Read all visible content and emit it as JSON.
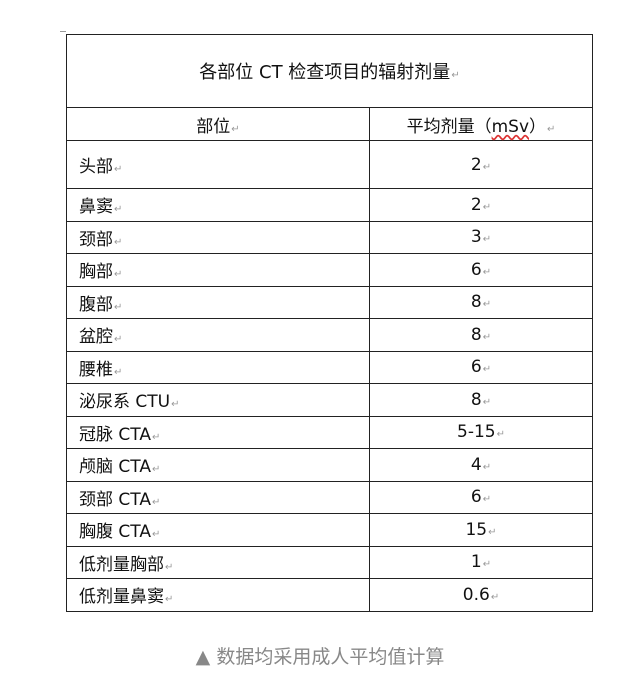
{
  "table": {
    "title": "各部位 CT 检查项目的辐射剂量",
    "headers": {
      "part": "部位",
      "dose_prefix": "平均剂量（",
      "dose_unit": "mSv",
      "dose_suffix": "）"
    },
    "rows": [
      {
        "part": "头部",
        "dose": "2"
      },
      {
        "part": "鼻窦",
        "dose": "2"
      },
      {
        "part": "颈部",
        "dose": "3"
      },
      {
        "part": "胸部",
        "dose": "6"
      },
      {
        "part": "腹部",
        "dose": "8"
      },
      {
        "part": "盆腔",
        "dose": "8"
      },
      {
        "part": "腰椎",
        "dose": "6"
      },
      {
        "part": "泌尿系 CTU",
        "dose": "8"
      },
      {
        "part": "冠脉 CTA",
        "dose": "5-15"
      },
      {
        "part": "颅脑 CTA",
        "dose": "4"
      },
      {
        "part": "颈部 CTA",
        "dose": "6"
      },
      {
        "part": "胸腹 CTA",
        "dose": "15"
      },
      {
        "part": "低剂量胸部",
        "dose": "1"
      },
      {
        "part": "低剂量鼻窦",
        "dose": "0.6"
      }
    ]
  },
  "caption": "▲ 数据均采用成人平均值计算"
}
